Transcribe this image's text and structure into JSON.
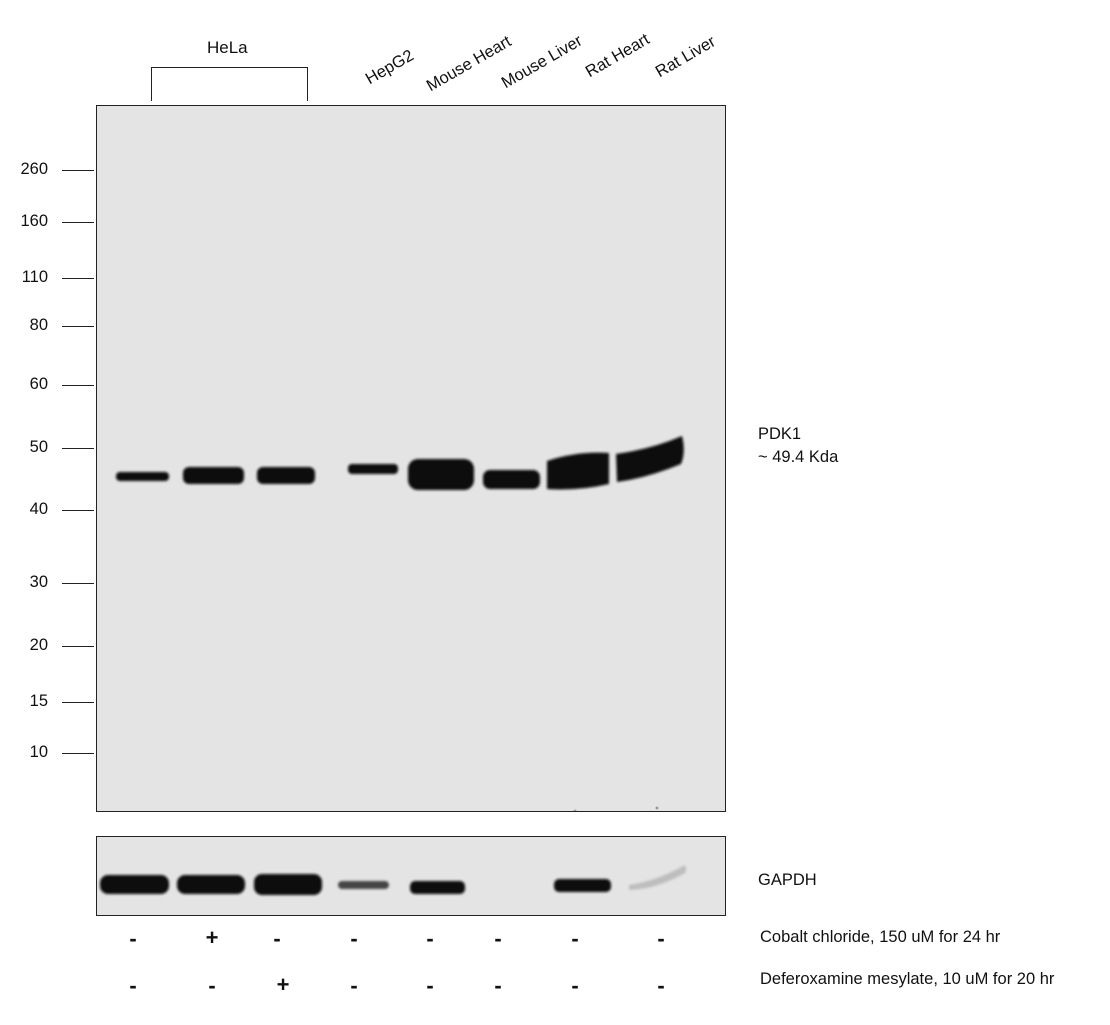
{
  "cell_group": {
    "label": "HeLa"
  },
  "lanes": [
    {
      "label": "HepG2"
    },
    {
      "label": "Mouse Heart"
    },
    {
      "label": "Mouse Liver"
    },
    {
      "label": "Rat Heart"
    },
    {
      "label": "Rat Liver"
    }
  ],
  "mw_markers": [
    "260",
    "160",
    "110",
    "80",
    "60",
    "50",
    "40",
    "30",
    "20",
    "15",
    "10"
  ],
  "target": {
    "name": "PDK1",
    "size": "~ 49.4 Kda"
  },
  "loading_control": {
    "name": "GAPDH"
  },
  "treatments": [
    {
      "label": "Cobalt chloride, 150 uM for 24 hr",
      "signs": [
        "-",
        "+",
        "-",
        "-",
        "-",
        "-",
        "-",
        "-"
      ]
    },
    {
      "label": "Deferoxamine mesylate, 10 uM for 20 hr",
      "signs": [
        "-",
        "-",
        "+",
        "-",
        "-",
        "-",
        "-",
        "-"
      ]
    }
  ]
}
